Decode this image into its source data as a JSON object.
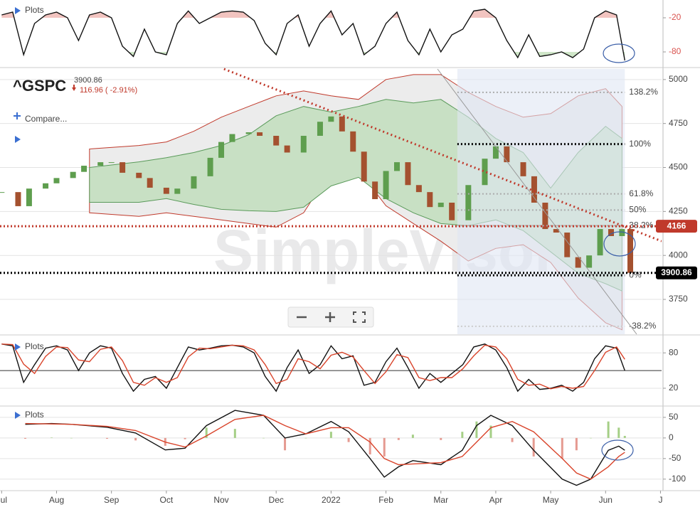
{
  "watermark": "SimpleVisor",
  "chart_data": [
    {
      "type": "line",
      "plots_label": "Plots",
      "x": [
        0,
        0.2,
        0.4,
        0.6,
        0.8,
        1.0,
        1.2,
        1.4,
        1.6,
        1.8,
        2.0,
        2.2,
        2.4,
        2.6,
        2.8,
        3.0,
        3.2,
        3.4,
        3.6,
        3.8,
        4.0,
        4.2,
        4.4,
        4.6,
        4.8,
        5.0,
        5.2,
        5.4,
        5.6,
        5.8,
        6.0,
        6.2,
        6.4,
        6.6,
        6.8,
        7.0,
        7.2,
        7.4,
        7.6,
        7.8,
        8.0,
        8.2,
        8.4,
        8.6,
        8.8,
        9.0,
        9.2,
        9.4,
        9.6,
        9.8,
        10.0,
        10.2,
        10.4,
        10.6,
        10.8,
        11.0,
        11.2,
        11.35
      ],
      "series": [
        {
          "color": "#111111",
          "values": [
            -15,
            -10,
            -85,
            -30,
            -15,
            -10,
            -20,
            -60,
            -15,
            -10,
            -20,
            -70,
            -88,
            -40,
            -80,
            -85,
            -30,
            -8,
            -30,
            -20,
            -10,
            -8,
            -10,
            -25,
            -65,
            -85,
            -30,
            -15,
            -70,
            -30,
            -8,
            -50,
            -30,
            -85,
            -70,
            -30,
            -10,
            -60,
            -85,
            -40,
            -80,
            -50,
            -40,
            -8,
            -5,
            -20,
            -60,
            -90,
            -50,
            -88,
            -85,
            -80,
            -90,
            -75,
            -20,
            -8,
            -15,
            -95
          ]
        }
      ],
      "fills": [
        {
          "level": -20,
          "side": "above",
          "color": "#f2c4c0"
        },
        {
          "level": -80,
          "side": "below",
          "color": "#cfe6c8"
        }
      ],
      "ylim": [
        -100,
        0
      ],
      "yticks": [
        -20,
        -80
      ],
      "tick_color": "#d9534f",
      "grid": false
    },
    {
      "type": "candlestick",
      "title": "^GSPC",
      "price_label": "3900.86",
      "change_label": "116.96 ( -2.91%)",
      "compare_label": "Compare...",
      "plots_label": "Plots",
      "x": [
        0,
        0.3,
        0.5,
        0.8,
        1.0,
        1.3,
        1.5,
        1.8,
        2.0,
        2.2,
        2.5,
        2.7,
        3.0,
        3.2,
        3.5,
        3.8,
        4.0,
        4.2,
        4.5,
        4.7,
        5.0,
        5.2,
        5.5,
        5.8,
        6.0,
        6.2,
        6.4,
        6.6,
        6.8,
        7.0,
        7.2,
        7.4,
        7.6,
        7.8,
        8.0,
        8.2,
        8.5,
        8.8,
        9.0,
        9.2,
        9.5,
        9.7,
        9.9,
        10.1,
        10.3,
        10.5,
        10.7,
        10.9,
        11.1,
        11.3,
        11.45
      ],
      "values": [
        4360,
        4280,
        4380,
        4410,
        4440,
        4475,
        4510,
        4530,
        4530,
        4470,
        4440,
        4385,
        4350,
        4380,
        4450,
        4555,
        4645,
        4690,
        4700,
        4680,
        4625,
        4585,
        4680,
        4760,
        4790,
        4705,
        4590,
        4420,
        4320,
        4480,
        4530,
        4400,
        4360,
        4275,
        4300,
        4200,
        4400,
        4550,
        4620,
        4530,
        4450,
        4300,
        4150,
        4130,
        3990,
        3930,
        4000,
        4150,
        4110,
        4150,
        3900.86
      ],
      "up_color": "#5e9e4e",
      "down_color": "#a4512f",
      "band_x": [
        1.6,
        2.5,
        3.0,
        3.5,
        4.0,
        4.5,
        5.0,
        5.5,
        6.0,
        6.5,
        7.0,
        7.5,
        8.0,
        8.5,
        9.0,
        9.5,
        10.0,
        10.5,
        11.0,
        11.3
      ],
      "bands": [
        {
          "upper": [
            4605,
            4625,
            4645,
            4706,
            4786,
            4847,
            4907,
            4935,
            4907,
            4887,
            5000,
            5028,
            5028,
            4927,
            4847,
            4786,
            4806,
            4907,
            4948,
            4847
          ],
          "lower": [
            4242,
            4222,
            4242,
            4222,
            4202,
            4181,
            4161,
            4242,
            4484,
            4484,
            4282,
            4181,
            4081,
            3968,
            4040,
            4061,
            3960,
            3758,
            3617,
            3577
          ],
          "fill": "#ececec",
          "stroke": "#c0392b"
        },
        {
          "upper": [
            4500,
            4532,
            4556,
            4585,
            4625,
            4686,
            4794,
            4847,
            4815,
            4847,
            4887,
            4867,
            4887,
            4786,
            4665,
            4585,
            4383,
            4585,
            4734,
            4665
          ],
          "lower": [
            4302,
            4302,
            4323,
            4290,
            4262,
            4254,
            4250,
            4274,
            4395,
            4444,
            4323,
            4242,
            4181,
            4169,
            4202,
            4141,
            4020,
            3899,
            3839,
            3798
          ],
          "fill": "#c8e0c4",
          "stroke": "#5a9a5a"
        }
      ],
      "trendline": {
        "x": [
          4.05,
          12.02
        ],
        "values": [
          5060,
          4081
        ],
        "color": "#c0392b"
      },
      "fib": {
        "x": [
          8.3,
          11.35
        ],
        "labels": [
          "138.2%",
          "100%",
          "61.8%",
          "50%",
          "38.2%",
          "0%",
          "-38.2%"
        ],
        "prices": [
          4927,
          4633,
          4350,
          4258,
          4169,
          3887,
          3597
        ],
        "colors": [
          "#aaaaaa",
          "#000000",
          "#aaaaaa",
          "#aaaaaa",
          "#aaaaaa",
          "#000000",
          "#cccccc"
        ],
        "shade": "#dfe6f3"
      },
      "price_lines": [
        {
          "value": 4166,
          "color": "#c0392b"
        },
        {
          "value": 3900.86,
          "color": "#000000"
        }
      ],
      "ylim": [
        3552,
        5060
      ],
      "yticks": [
        5000,
        4750,
        4500,
        4250,
        4000,
        3750
      ],
      "grid": true
    },
    {
      "type": "line",
      "plots_label": "Plots",
      "x": [
        0,
        0.2,
        0.4,
        0.6,
        0.8,
        1.0,
        1.2,
        1.4,
        1.6,
        1.8,
        2.0,
        2.2,
        2.4,
        2.6,
        2.8,
        3.0,
        3.2,
        3.4,
        3.6,
        3.8,
        4.0,
        4.2,
        4.4,
        4.6,
        4.8,
        5.0,
        5.2,
        5.4,
        5.6,
        5.8,
        6.0,
        6.2,
        6.4,
        6.6,
        6.8,
        7.0,
        7.2,
        7.4,
        7.6,
        7.8,
        8.0,
        8.2,
        8.4,
        8.6,
        8.8,
        9.0,
        9.2,
        9.4,
        9.6,
        9.8,
        10.0,
        10.2,
        10.4,
        10.6,
        10.8,
        11.0,
        11.2,
        11.35
      ],
      "series": [
        {
          "color": "#111111",
          "values": [
            95,
            92,
            30,
            60,
            88,
            92,
            85,
            50,
            80,
            92,
            88,
            45,
            15,
            35,
            40,
            20,
            55,
            90,
            85,
            88,
            92,
            93,
            90,
            80,
            40,
            15,
            55,
            85,
            45,
            60,
            92,
            70,
            75,
            25,
            30,
            65,
            88,
            55,
            20,
            45,
            30,
            45,
            60,
            90,
            95,
            85,
            55,
            15,
            35,
            18,
            20,
            25,
            15,
            30,
            70,
            92,
            88,
            50
          ]
        },
        {
          "color": "#d9442b",
          "values": [
            95,
            94,
            61,
            45,
            74,
            90,
            89,
            68,
            65,
            86,
            90,
            67,
            30,
            25,
            38,
            30,
            38,
            73,
            88,
            87,
            90,
            93,
            92,
            85,
            60,
            28,
            35,
            70,
            65,
            53,
            76,
            81,
            73,
            50,
            28,
            48,
            77,
            72,
            38,
            33,
            38,
            38,
            53,
            75,
            93,
            90,
            70,
            35,
            25,
            27,
            19,
            23,
            20,
            23,
            50,
            81,
            90,
            69
          ]
        }
      ],
      "midline": 50,
      "ylim": [
        -9,
        108
      ],
      "yticks": [
        80,
        20
      ],
      "grid": true
    },
    {
      "type": "line",
      "plots_label": "Plots",
      "x": [
        0.43,
        0.91,
        1.27,
        1.92,
        2.44,
        2.98,
        3.34,
        3.73,
        4.25,
        4.77,
        5.16,
        5.54,
        6.0,
        6.32,
        6.71,
        6.97,
        7.23,
        7.49,
        8.0,
        8.39,
        8.65,
        8.91,
        9.3,
        9.69,
        10.21,
        10.47,
        10.73,
        11.05,
        11.24,
        11.35
      ],
      "histogram": {
        "values": [
          -2,
          1,
          0,
          -2,
          -6,
          -19,
          -3,
          25,
          22,
          0,
          -30,
          0,
          15,
          -10,
          -40,
          -45,
          -5,
          8,
          -5,
          15,
          40,
          30,
          -10,
          -45,
          -50,
          -30,
          0,
          40,
          25,
          5
        ],
        "pos_color": "#a5cf86",
        "neg_color": "#e59a91"
      },
      "series": [
        {
          "color": "#111111",
          "values": [
            33,
            35,
            33,
            26,
            12,
            -29,
            -25,
            30,
            67,
            55,
            0,
            10,
            40,
            15,
            -50,
            -95,
            -70,
            -55,
            -65,
            -30,
            30,
            55,
            30,
            -30,
            -100,
            -115,
            -100,
            -30,
            -20,
            -30
          ]
        },
        {
          "color": "#d9442b",
          "values": [
            35,
            34,
            33,
            28,
            18,
            -10,
            -22,
            5,
            45,
            55,
            30,
            10,
            25,
            25,
            -10,
            -50,
            -65,
            -63,
            -60,
            -45,
            -10,
            25,
            40,
            15,
            -50,
            -85,
            -100,
            -70,
            -45,
            -35
          ]
        }
      ],
      "ylim": [
        -128,
        74
      ],
      "yticks": [
        50,
        0,
        -50,
        -100
      ],
      "grid": true,
      "xlim": [
        -0.03,
        12.02
      ],
      "xticks": [
        {
          "value": 0,
          "label": "Jul"
        },
        {
          "value": 1,
          "label": "Aug"
        },
        {
          "value": 2,
          "label": "Sep"
        },
        {
          "value": 3,
          "label": "Oct"
        },
        {
          "value": 4,
          "label": "Nov"
        },
        {
          "value": 5,
          "label": "Dec"
        },
        {
          "value": 6,
          "label": "2022"
        },
        {
          "value": 7,
          "label": "Feb"
        },
        {
          "value": 8,
          "label": "Mar"
        },
        {
          "value": 9,
          "label": "Apr"
        },
        {
          "value": 10,
          "label": "May"
        },
        {
          "value": 11,
          "label": "Jun"
        },
        {
          "value": 12,
          "label": "J"
        }
      ]
    }
  ]
}
